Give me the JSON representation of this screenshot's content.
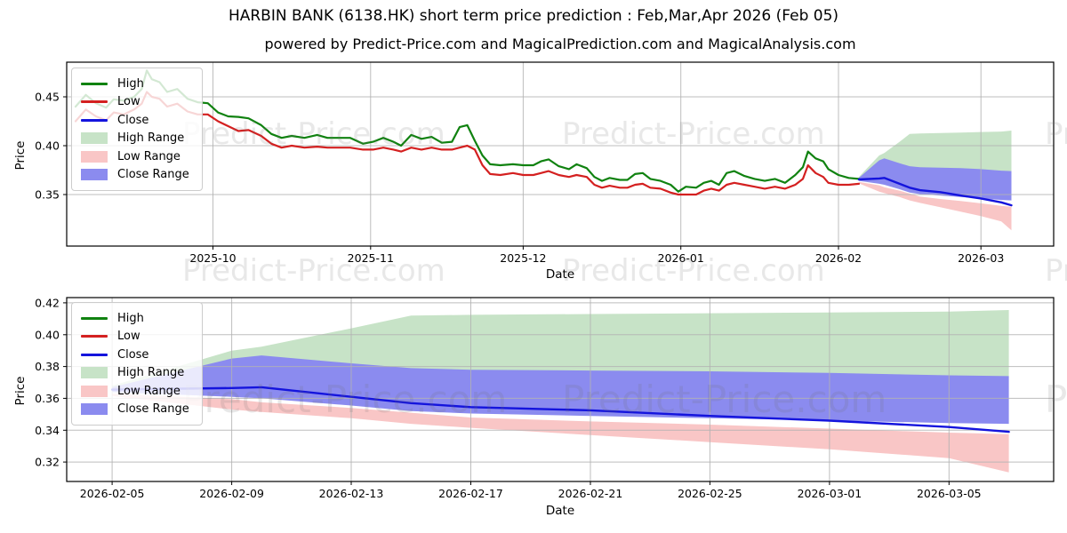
{
  "figure": {
    "title": "HARBIN BANK (6138.HK) short term price prediction : Feb,Mar,Apr 2026 (Feb 05)",
    "subtitle": "powered by Predict-Price.com and MagicalPrediction.com and MagicalAnalysis.com",
    "watermark": "Predict-Price.com"
  },
  "colors": {
    "high": "#108210",
    "low": "#d42020",
    "close": "#1414dd",
    "high_range": "#c7e3c7",
    "low_range": "#f9c6c6",
    "close_range": "#8b8bef"
  },
  "legend": [
    {
      "label": "High",
      "kind": "line",
      "color": "high"
    },
    {
      "label": "Low",
      "kind": "line",
      "color": "low"
    },
    {
      "label": "Close",
      "kind": "line",
      "color": "close"
    },
    {
      "label": "High Range",
      "kind": "patch",
      "color": "high_range"
    },
    {
      "label": "Low Range",
      "kind": "patch",
      "color": "low_range"
    },
    {
      "label": "Close Range",
      "kind": "patch",
      "color": "close_range"
    }
  ],
  "chart_data": [
    {
      "type": "line",
      "name": "history-and-prediction",
      "xlabel": "Date",
      "ylabel": "Price",
      "x_unit": "days",
      "grid": true,
      "legend_position": "upper left",
      "xlim": [
        -1.75,
        192.3
      ],
      "ylim": [
        0.2973,
        0.4855
      ],
      "xticks": [
        {
          "pos": 27,
          "label": "2025-10"
        },
        {
          "pos": 58,
          "label": "2025-11"
        },
        {
          "pos": 88,
          "label": "2025-12"
        },
        {
          "pos": 119,
          "label": "2026-01"
        },
        {
          "pos": 150,
          "label": "2026-02"
        },
        {
          "pos": 178,
          "label": "2026-03"
        }
      ],
      "yticks": [
        {
          "pos": 0.35,
          "label": "0.35"
        },
        {
          "pos": 0.4,
          "label": "0.40"
        },
        {
          "pos": 0.45,
          "label": "0.45"
        }
      ],
      "series": [
        {
          "name": "High Range",
          "kind": "band",
          "color": "high_range",
          "x": [
            154,
            158,
            159,
            162,
            164,
            166,
            170,
            174,
            178,
            182,
            184
          ],
          "upper": [
            0.368,
            0.39,
            0.3925,
            0.404,
            0.412,
            0.4125,
            0.413,
            0.4135,
            0.414,
            0.4145,
            0.4155
          ],
          "lower": [
            0.366,
            0.378,
            0.38,
            0.378,
            0.3765,
            0.3755,
            0.375,
            0.3745,
            0.374,
            0.3735,
            0.373
          ]
        },
        {
          "name": "Low Range",
          "kind": "band",
          "color": "low_range",
          "x": [
            154,
            158,
            159,
            162,
            164,
            166,
            170,
            174,
            178,
            182,
            184
          ],
          "upper": [
            0.363,
            0.3595,
            0.3575,
            0.354,
            0.351,
            0.348,
            0.3455,
            0.3435,
            0.341,
            0.3385,
            0.3375
          ],
          "lower": [
            0.3615,
            0.353,
            0.3515,
            0.3475,
            0.344,
            0.3415,
            0.337,
            0.3325,
            0.328,
            0.3225,
            0.3135
          ]
        },
        {
          "name": "Close Range",
          "kind": "band",
          "color": "close_range",
          "x": [
            154,
            158,
            159,
            162,
            164,
            166,
            170,
            174,
            178,
            182,
            184
          ],
          "upper": [
            0.367,
            0.385,
            0.387,
            0.382,
            0.379,
            0.378,
            0.3775,
            0.377,
            0.376,
            0.3745,
            0.374
          ],
          "lower": [
            0.364,
            0.361,
            0.36,
            0.3555,
            0.352,
            0.3505,
            0.349,
            0.3475,
            0.346,
            0.3445,
            0.344
          ]
        },
        {
          "name": "High",
          "kind": "line",
          "color": "high",
          "width": 2.2,
          "x": [
            0,
            2,
            4,
            6,
            7.5,
            9.5,
            11.5,
            13,
            14,
            15,
            16.5,
            18,
            20,
            22,
            24,
            26,
            28,
            30,
            32,
            34,
            36.5,
            38.5,
            40.5,
            42.5,
            45,
            47.5,
            49.5,
            54,
            56.5,
            58.5,
            60.5,
            62.5,
            64,
            66,
            68,
            70,
            72,
            74,
            75.5,
            77,
            78.5,
            80,
            81.5,
            83.5,
            86,
            88,
            90,
            91.5,
            93,
            95,
            97,
            98.5,
            100.5,
            102,
            103.5,
            105,
            107,
            108.5,
            110,
            111.5,
            113,
            115,
            117,
            118.5,
            120,
            122,
            123.5,
            125,
            126.5,
            128,
            129.5,
            131.5,
            133.5,
            135.5,
            137.5,
            139.5,
            141.5,
            143,
            144,
            145.5,
            147,
            148,
            150,
            152,
            154
          ],
          "y": [
            0.44,
            0.452,
            0.4435,
            0.439,
            0.4475,
            0.446,
            0.45,
            0.458,
            0.477,
            0.468,
            0.465,
            0.455,
            0.458,
            0.448,
            0.4445,
            0.4435,
            0.434,
            0.43,
            0.4295,
            0.428,
            0.421,
            0.412,
            0.408,
            0.41,
            0.408,
            0.411,
            0.408,
            0.408,
            0.402,
            0.404,
            0.408,
            0.404,
            0.4,
            0.411,
            0.407,
            0.409,
            0.403,
            0.404,
            0.419,
            0.421,
            0.405,
            0.39,
            0.381,
            0.38,
            0.381,
            0.38,
            0.38,
            0.384,
            0.386,
            0.379,
            0.376,
            0.381,
            0.377,
            0.368,
            0.364,
            0.367,
            0.365,
            0.365,
            0.371,
            0.372,
            0.366,
            0.364,
            0.36,
            0.353,
            0.358,
            0.357,
            0.362,
            0.364,
            0.36,
            0.372,
            0.374,
            0.369,
            0.366,
            0.364,
            0.366,
            0.362,
            0.37,
            0.378,
            0.394,
            0.387,
            0.384,
            0.376,
            0.37,
            0.367,
            0.366
          ]
        },
        {
          "name": "Low",
          "kind": "line",
          "color": "low",
          "width": 2.2,
          "x": [
            0,
            2,
            4,
            6,
            7.5,
            9.5,
            11.5,
            13,
            14,
            15,
            16.5,
            18,
            20,
            22,
            24,
            26,
            28,
            30,
            32,
            34,
            36.5,
            38.5,
            40.5,
            42.5,
            45,
            47.5,
            49.5,
            54,
            56.5,
            58.5,
            60.5,
            62.5,
            64,
            66,
            68,
            70,
            72,
            74,
            75.5,
            77,
            78.5,
            80,
            81.5,
            83.5,
            86,
            88,
            90,
            91.5,
            93,
            95,
            97,
            98.5,
            100.5,
            102,
            103.5,
            105,
            107,
            108.5,
            110,
            111.5,
            113,
            115,
            117,
            118.5,
            120,
            122,
            123.5,
            125,
            126.5,
            128,
            129.5,
            131.5,
            133.5,
            135.5,
            137.5,
            139.5,
            141.5,
            143,
            144,
            145.5,
            147,
            148,
            150,
            152,
            154
          ],
          "y": [
            0.425,
            0.437,
            0.43,
            0.426,
            0.434,
            0.432,
            0.437,
            0.443,
            0.455,
            0.45,
            0.448,
            0.44,
            0.443,
            0.435,
            0.432,
            0.432,
            0.425,
            0.42,
            0.415,
            0.416,
            0.41,
            0.402,
            0.398,
            0.4,
            0.398,
            0.399,
            0.398,
            0.398,
            0.396,
            0.396,
            0.398,
            0.396,
            0.394,
            0.398,
            0.396,
            0.398,
            0.396,
            0.396,
            0.398,
            0.4,
            0.396,
            0.38,
            0.371,
            0.37,
            0.372,
            0.37,
            0.37,
            0.372,
            0.374,
            0.37,
            0.368,
            0.37,
            0.368,
            0.36,
            0.357,
            0.359,
            0.357,
            0.357,
            0.36,
            0.361,
            0.357,
            0.356,
            0.352,
            0.35,
            0.35,
            0.35,
            0.354,
            0.356,
            0.354,
            0.36,
            0.362,
            0.36,
            0.358,
            0.356,
            0.358,
            0.356,
            0.36,
            0.366,
            0.38,
            0.372,
            0.368,
            0.362,
            0.36,
            0.36,
            0.361
          ]
        },
        {
          "name": "Close",
          "kind": "line",
          "color": "close",
          "width": 2.4,
          "x": [
            154,
            158,
            159,
            162,
            164,
            166,
            170,
            174,
            178,
            182,
            184
          ],
          "y": [
            0.3655,
            0.3665,
            0.367,
            0.361,
            0.357,
            0.3545,
            0.3525,
            0.349,
            0.346,
            0.342,
            0.339
          ]
        }
      ]
    },
    {
      "type": "line",
      "name": "prediction-detail",
      "xlabel": "Date",
      "ylabel": "Price",
      "x_unit": "days",
      "grid": true,
      "legend_position": "upper left",
      "xlim": [
        -1.52,
        31.5
      ],
      "ylim": [
        0.3078,
        0.4233
      ],
      "xticks": [
        {
          "pos": 0,
          "label": "2026-02-05"
        },
        {
          "pos": 4,
          "label": "2026-02-09"
        },
        {
          "pos": 8,
          "label": "2026-02-13"
        },
        {
          "pos": 12,
          "label": "2026-02-17"
        },
        {
          "pos": 16,
          "label": "2026-02-21"
        },
        {
          "pos": 20,
          "label": "2026-02-25"
        },
        {
          "pos": 24,
          "label": "2026-03-01"
        },
        {
          "pos": 28,
          "label": "2026-03-05"
        }
      ],
      "yticks": [
        {
          "pos": 0.32,
          "label": "0.32"
        },
        {
          "pos": 0.34,
          "label": "0.34"
        },
        {
          "pos": 0.36,
          "label": "0.36"
        },
        {
          "pos": 0.38,
          "label": "0.38"
        },
        {
          "pos": 0.4,
          "label": "0.40"
        },
        {
          "pos": 0.42,
          "label": "0.42"
        }
      ],
      "series": [
        {
          "name": "High Range",
          "kind": "band",
          "color": "high_range",
          "x": [
            0,
            4,
            5,
            8,
            10,
            12,
            16,
            20,
            24,
            28,
            30
          ],
          "upper": [
            0.368,
            0.39,
            0.3925,
            0.404,
            0.412,
            0.4125,
            0.413,
            0.4135,
            0.414,
            0.4145,
            0.4155
          ],
          "lower": [
            0.366,
            0.378,
            0.38,
            0.378,
            0.3765,
            0.3755,
            0.375,
            0.3745,
            0.374,
            0.3735,
            0.373
          ]
        },
        {
          "name": "Low Range",
          "kind": "band",
          "color": "low_range",
          "x": [
            0,
            4,
            5,
            8,
            10,
            12,
            16,
            20,
            24,
            28,
            30
          ],
          "upper": [
            0.363,
            0.3595,
            0.3575,
            0.354,
            0.351,
            0.348,
            0.3455,
            0.3435,
            0.341,
            0.3385,
            0.3375
          ],
          "lower": [
            0.3615,
            0.353,
            0.3515,
            0.3475,
            0.344,
            0.3415,
            0.337,
            0.3325,
            0.328,
            0.3225,
            0.3135
          ]
        },
        {
          "name": "Close Range",
          "kind": "band",
          "color": "close_range",
          "x": [
            0,
            4,
            5,
            8,
            10,
            12,
            16,
            20,
            24,
            28,
            30
          ],
          "upper": [
            0.367,
            0.385,
            0.387,
            0.382,
            0.379,
            0.378,
            0.3775,
            0.377,
            0.376,
            0.3745,
            0.374
          ],
          "lower": [
            0.364,
            0.361,
            0.36,
            0.3555,
            0.352,
            0.3505,
            0.349,
            0.3475,
            0.346,
            0.3445,
            0.344
          ]
        },
        {
          "name": "Close",
          "kind": "line",
          "color": "close",
          "width": 2.4,
          "x": [
            0,
            4,
            5,
            8,
            10,
            12,
            16,
            20,
            24,
            28,
            30
          ],
          "y": [
            0.3655,
            0.3665,
            0.367,
            0.361,
            0.357,
            0.3545,
            0.3525,
            0.349,
            0.346,
            0.342,
            0.339
          ]
        }
      ]
    }
  ]
}
